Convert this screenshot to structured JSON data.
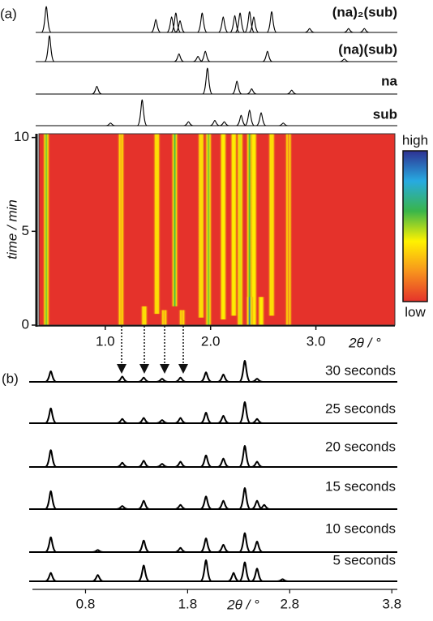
{
  "chart_data": [
    {
      "type": "pattern",
      "panel_label": "(a)",
      "xlim": [
        0.37,
        3.75
      ],
      "series": [
        {
          "name": "(na)₂(sub)",
          "color": "#000000",
          "x": [
            0.44,
            1.48,
            1.63,
            1.67,
            1.71,
            1.92,
            2.12,
            2.23,
            2.28,
            2.37,
            2.41,
            2.58,
            2.94,
            3.31,
            3.46
          ],
          "values": [
            1.0,
            0.5,
            0.6,
            0.75,
            0.45,
            0.75,
            0.6,
            0.65,
            0.75,
            0.8,
            0.6,
            0.8,
            0.15,
            0.15,
            0.15
          ]
        },
        {
          "name": "(na)(sub)",
          "color": "#000000",
          "x": [
            0.47,
            1.7,
            1.88,
            1.95,
            2.54,
            3.27
          ],
          "values": [
            1.0,
            0.3,
            0.2,
            0.4,
            0.4,
            0.1
          ]
        },
        {
          "name": "na",
          "color": "#000000",
          "x": [
            0.92,
            1.97,
            2.25,
            2.39,
            2.77
          ],
          "values": [
            0.3,
            1.0,
            0.5,
            0.2,
            0.15
          ]
        },
        {
          "name": "sub",
          "color": "#000000",
          "x": [
            1.05,
            1.35,
            1.79,
            2.04,
            2.13,
            2.29,
            2.37,
            2.48,
            2.69
          ],
          "values": [
            0.1,
            1.0,
            0.15,
            0.2,
            0.15,
            0.4,
            0.6,
            0.5,
            0.1
          ]
        }
      ]
    },
    {
      "type": "heatmap",
      "x_label": "2θ / °",
      "y_label": "time / min",
      "xlim": [
        0.37,
        3.75
      ],
      "ylim": [
        0,
        10.2
      ],
      "xticks": [
        {
          "value": 1,
          "label": "1.0"
        },
        {
          "value": 2,
          "label": "2.0"
        },
        {
          "value": 3,
          "label": "3.0"
        }
      ],
      "yticks": [
        0,
        5,
        10
      ],
      "colorbar_labels": [
        "high",
        "low"
      ],
      "colormap": [
        "#e5322b",
        "#f7941d",
        "#fff200",
        "#39b54a",
        "#27aae1",
        "#2e3192"
      ],
      "streak_x": [
        0.44,
        1.15,
        1.37,
        1.49,
        1.56,
        1.66,
        1.73,
        1.91,
        1.98,
        2.12,
        2.22,
        2.28,
        2.37,
        2.41,
        2.48,
        2.58,
        2.74,
        2.37
      ],
      "streak_start": [
        0,
        0,
        0,
        0.6,
        0,
        1.0,
        0,
        0.4,
        0,
        0.3,
        0.5,
        0,
        0,
        0,
        0,
        0.5,
        0,
        0
      ],
      "streak_end": [
        10.2,
        10.2,
        1.0,
        10.2,
        0.8,
        10.2,
        0.8,
        10.2,
        10.2,
        10.2,
        10.2,
        10.2,
        10.2,
        10.2,
        1.5,
        10.2,
        10.2,
        1.5
      ],
      "streak_intensity": [
        0.55,
        0.25,
        0.35,
        0.35,
        0.25,
        0.6,
        0.25,
        0.35,
        0.55,
        0.4,
        0.4,
        0.45,
        0.6,
        0.4,
        0.4,
        0.35,
        0.15,
        0.9
      ]
    },
    {
      "type": "pattern",
      "panel_label": "(b)",
      "x_label": "2θ / °",
      "xlim": [
        0.28,
        3.83
      ],
      "xticks": [
        0.8,
        1.8,
        2.8,
        3.8
      ],
      "series": [
        {
          "name": "30 seconds",
          "color": "#000000",
          "x": [
            0.46,
            1.16,
            1.37,
            1.55,
            1.73,
            1.98,
            2.15,
            2.36,
            2.48
          ],
          "values": [
            0.5,
            0.25,
            0.2,
            0.15,
            0.2,
            0.45,
            0.35,
            1.0,
            0.15
          ]
        },
        {
          "name": "25 seconds",
          "color": "#000000",
          "x": [
            0.46,
            1.16,
            1.37,
            1.55,
            1.73,
            1.98,
            2.15,
            2.36,
            2.48
          ],
          "values": [
            0.7,
            0.2,
            0.25,
            0.15,
            0.25,
            0.5,
            0.35,
            1.0,
            0.2
          ]
        },
        {
          "name": "20 seconds",
          "color": "#000000",
          "x": [
            0.46,
            1.16,
            1.37,
            1.55,
            1.73,
            1.98,
            2.15,
            2.36,
            2.48
          ],
          "values": [
            0.8,
            0.2,
            0.3,
            0.15,
            0.25,
            0.55,
            0.4,
            1.0,
            0.25
          ]
        },
        {
          "name": "15 seconds",
          "color": "#000000",
          "x": [
            0.46,
            1.16,
            1.37,
            1.73,
            1.98,
            2.15,
            2.36,
            2.48,
            2.55
          ],
          "values": [
            0.85,
            0.15,
            0.4,
            0.2,
            0.6,
            0.4,
            1.0,
            0.4,
            0.2
          ]
        },
        {
          "name": "10 seconds",
          "color": "#000000",
          "x": [
            0.46,
            0.92,
            1.37,
            1.73,
            1.98,
            2.15,
            2.36,
            2.48
          ],
          "values": [
            0.7,
            0.1,
            0.55,
            0.2,
            0.65,
            0.35,
            0.9,
            0.5
          ]
        },
        {
          "name": "5 seconds",
          "color": "#000000",
          "x": [
            0.46,
            0.92,
            1.37,
            1.98,
            2.25,
            2.36,
            2.48,
            2.73
          ],
          "values": [
            0.4,
            0.3,
            0.75,
            1.0,
            0.4,
            0.9,
            0.6,
            0.1
          ]
        }
      ]
    }
  ]
}
